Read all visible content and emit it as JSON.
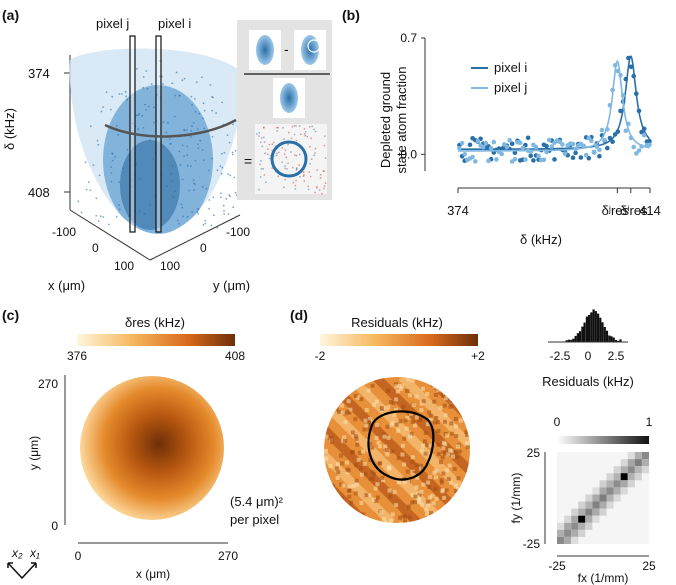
{
  "panels": {
    "a": {
      "label": "(a)",
      "pixel_j": "pixel j",
      "pixel_i": "pixel i",
      "delta_axis": "δ (kHz)",
      "delta_ticks": [
        "374",
        "408"
      ],
      "x_axis": "x (μm)",
      "x_ticks": [
        "-100",
        "0",
        "100"
      ],
      "y_axis": "y (μm)",
      "y_ticks": [
        "-100",
        "0",
        "100"
      ],
      "inset_minus": "-",
      "inset_equals": "="
    },
    "b": {
      "label": "(b)",
      "ylabel_line1": "Depleted ground",
      "ylabel_line2": "state atom fraction",
      "xlabel": "δ (kHz)",
      "legend_i": "pixel i",
      "legend_j": "pixel j",
      "delta_res_j": "δʲres",
      "delta_res_i": "δⁱres"
    },
    "c": {
      "label": "(c)",
      "colorbar_title": "δres (kHz)",
      "colorbar_min": "376",
      "colorbar_max": "408",
      "y_axis": "y (μm)",
      "x_axis": "x (μm)",
      "y_ticks": [
        "270",
        "0"
      ],
      "x_ticks": [
        "0",
        "270"
      ],
      "pixel_note_1": "(5.4 μm)²",
      "pixel_note_2": "per pixel",
      "x1": "x₁",
      "x2": "x₂"
    },
    "d": {
      "label": "(d)",
      "colorbar_title": "Residuals (kHz)",
      "colorbar_min": "-2",
      "colorbar_max": "+2",
      "hist_ticks": [
        "-2.5",
        "0",
        "2.5"
      ],
      "hist_xlabel": "Residuals (kHz)",
      "fft_cbar_ticks": [
        "0",
        "1"
      ],
      "fy_label": "fy (1/mm)",
      "fx_label": "fx (1/mm)",
      "fy_ticks": [
        "25",
        "-25"
      ],
      "fx_ticks": [
        "-25",
        "25"
      ]
    }
  },
  "chart_data": [
    {
      "type": "scatter",
      "panel": "b",
      "xlabel": "δ (kHz)",
      "ylabel": "Depleted ground state atom fraction",
      "xlim": [
        374,
        414
      ],
      "ylim": [
        -0.1,
        0.7
      ],
      "x_ticks": [
        374,
        414
      ],
      "y_ticks": [
        0.0,
        0.7
      ],
      "y_tick_labels": [
        "0.0",
        "0.7"
      ],
      "resonances": {
        "pixel j": 407.2,
        "pixel i": 410.0
      },
      "series": [
        {
          "name": "pixel i",
          "color": "#2a6fa8",
          "fit": {
            "center": 410.0,
            "width": 1.4,
            "amplitude": 0.56,
            "offset": 0.03
          }
        },
        {
          "name": "pixel j",
          "color": "#7fb8e0",
          "fit": {
            "center": 407.2,
            "width": 1.3,
            "amplitude": 0.54,
            "offset": 0.02
          }
        }
      ]
    },
    {
      "type": "heatmap",
      "panel": "c",
      "title": "δres (kHz)",
      "xlabel": "x (μm)",
      "ylabel": "y (μm)",
      "xlim": [
        0,
        270
      ],
      "ylim": [
        0,
        270
      ],
      "colorbar_range": [
        376,
        408
      ]
    },
    {
      "type": "heatmap",
      "panel": "d",
      "title": "Residuals (kHz)",
      "colorbar_range": [
        -2,
        2
      ]
    },
    {
      "type": "bar",
      "panel": "d-histogram",
      "xlabel": "Residuals (kHz)",
      "x_ticks": [
        -2.5,
        0,
        2.5
      ]
    },
    {
      "type": "heatmap",
      "panel": "d-fft",
      "xlabel": "fx (1/mm)",
      "ylabel": "fy (1/mm)",
      "xlim": [
        -25,
        25
      ],
      "ylim": [
        -25,
        25
      ],
      "colorbar_range": [
        0,
        1
      ]
    }
  ]
}
